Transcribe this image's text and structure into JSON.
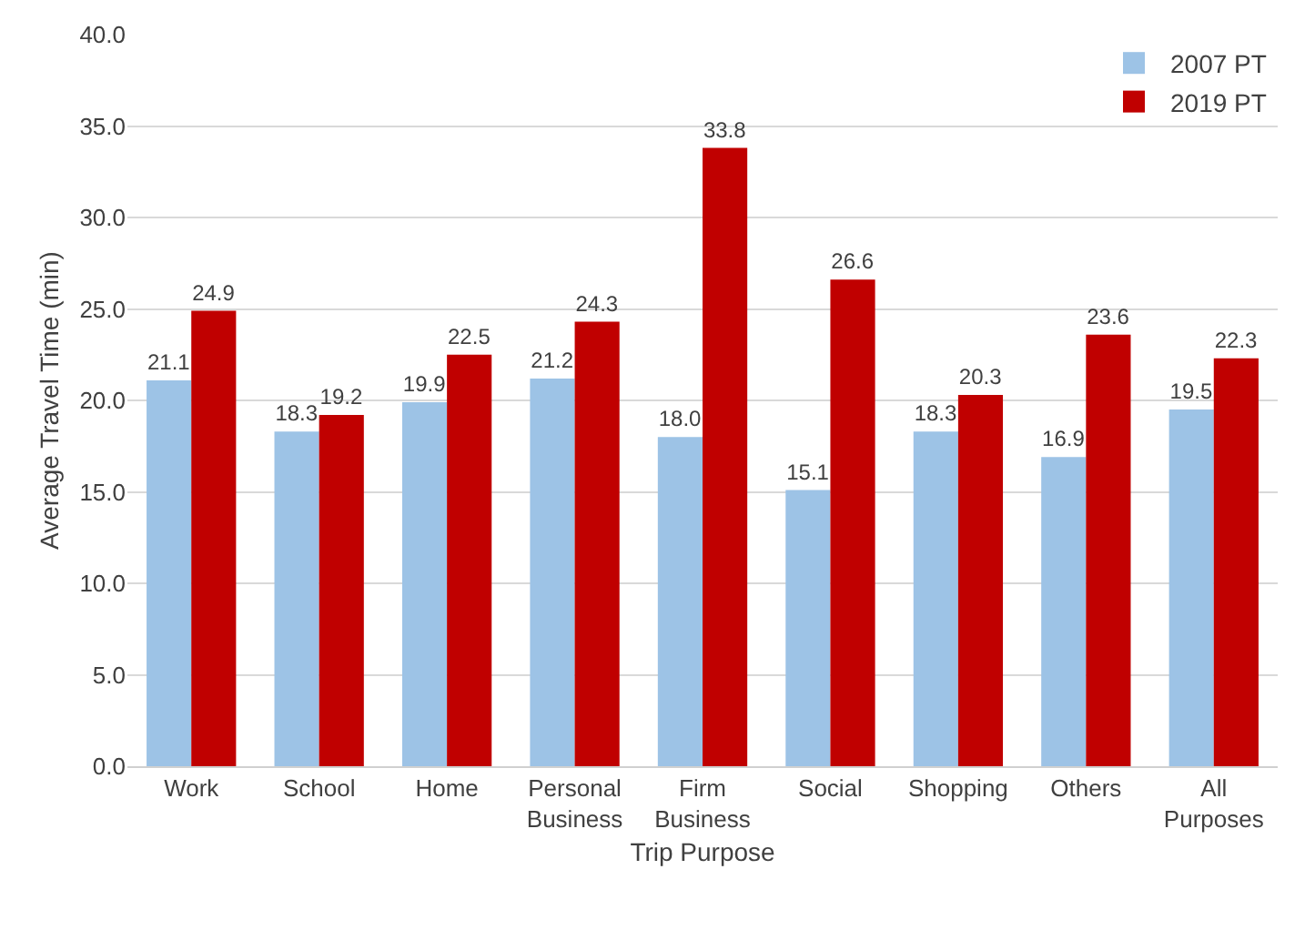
{
  "chart_data": {
    "type": "bar",
    "xlabel": "Trip Purpose",
    "ylabel": "Average Travel Time (min)",
    "categories": [
      "Work",
      "School",
      "Home",
      "Personal Business",
      "Firm Business",
      "Social",
      "Shopping",
      "Others",
      "All Purposes"
    ],
    "series": [
      {
        "name": "2007 PT",
        "color": "#9dc3e6",
        "values": [
          21.1,
          18.3,
          19.9,
          21.2,
          18.0,
          15.1,
          18.3,
          16.9,
          19.5
        ],
        "value_labels": [
          "21.1",
          "18.3",
          "19.9",
          "21.2",
          "18.0",
          "15.1",
          "18.3",
          "16.9",
          "19.5"
        ]
      },
      {
        "name": "2019 PT",
        "color": "#c00000",
        "values": [
          24.9,
          19.2,
          22.5,
          24.3,
          33.8,
          26.6,
          20.3,
          23.6,
          22.3
        ],
        "value_labels": [
          "24.9",
          "19.2",
          "22.5",
          "24.3",
          "33.8",
          "26.6",
          "20.3",
          "23.6",
          "22.3"
        ]
      }
    ],
    "ylim": [
      0,
      40
    ],
    "yticks": [
      {
        "value": 0,
        "label": "0.0"
      },
      {
        "value": 5,
        "label": "5.0"
      },
      {
        "value": 10,
        "label": "10.0"
      },
      {
        "value": 15,
        "label": "15.0"
      },
      {
        "value": 20,
        "label": "20.0"
      },
      {
        "value": 25,
        "label": "25.0"
      },
      {
        "value": 30,
        "label": "30.0"
      },
      {
        "value": 35,
        "label": "35.0"
      },
      {
        "value": 40,
        "label": "40.0"
      }
    ],
    "grid": "y",
    "legend": "top right"
  }
}
